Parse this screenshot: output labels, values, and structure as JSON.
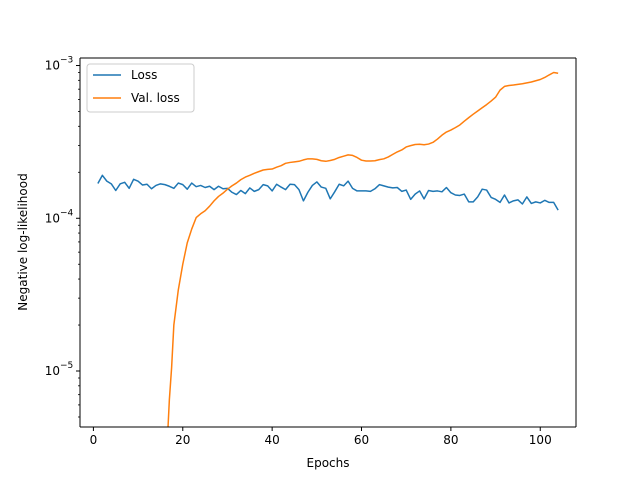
{
  "chart_data": {
    "type": "line",
    "title": "",
    "xlabel": "Epochs",
    "ylabel": "Negative log-likelihood",
    "xlim": [
      -3,
      108
    ],
    "ylim": [
      4.3e-06,
      0.00112
    ],
    "yscale": "log",
    "grid": false,
    "legend_position": "top-left",
    "xticks": [
      {
        "value": 0,
        "label": "0"
      },
      {
        "value": 20,
        "label": "20"
      },
      {
        "value": 40,
        "label": "40"
      },
      {
        "value": 60,
        "label": "60"
      },
      {
        "value": 80,
        "label": "80"
      },
      {
        "value": 100,
        "label": "100"
      }
    ],
    "yticks": [
      {
        "value": 1e-05,
        "base": "10",
        "exp": "−5"
      },
      {
        "value": 0.0001,
        "base": "10",
        "exp": "−4"
      },
      {
        "value": 0.001,
        "base": "10",
        "exp": "−3"
      }
    ],
    "series": [
      {
        "name": "Loss",
        "color": "#1f77b4",
        "x": [
          1,
          2,
          3,
          4,
          5,
          6,
          7,
          8,
          9,
          10,
          11,
          12,
          13,
          14,
          15,
          16,
          17,
          18,
          19,
          20,
          21,
          22,
          23,
          24,
          25,
          26,
          27,
          28,
          29,
          30,
          31,
          32,
          33,
          34,
          35,
          36,
          37,
          38,
          39,
          40,
          41,
          42,
          43,
          44,
          45,
          46,
          47,
          48,
          49,
          50,
          51,
          52,
          53,
          54,
          55,
          56,
          57,
          58,
          59,
          60,
          61,
          62,
          63,
          64,
          65,
          66,
          67,
          68,
          69,
          70,
          71,
          72,
          73,
          74,
          75,
          76,
          77,
          78,
          79,
          80,
          81,
          82,
          83,
          84,
          85,
          86,
          87,
          88,
          89,
          90,
          91,
          92,
          93,
          94,
          95,
          96,
          97,
          98,
          99,
          100,
          101,
          102,
          103,
          104
        ],
        "y": [
          0.000169,
          0.000191,
          0.000175,
          0.000168,
          0.000152,
          0.000168,
          0.000172,
          0.000157,
          0.00018,
          0.000175,
          0.000165,
          0.000167,
          0.000156,
          0.000164,
          0.000168,
          0.000166,
          0.000162,
          0.000157,
          0.00017,
          0.000166,
          0.000155,
          0.00017,
          0.000161,
          0.000164,
          0.000159,
          0.000162,
          0.000154,
          0.000162,
          0.000156,
          0.000157,
          0.000148,
          0.000143,
          0.000152,
          0.000145,
          0.000158,
          0.00015,
          0.000154,
          0.000166,
          0.000163,
          0.000151,
          0.000167,
          0.00016,
          0.000154,
          0.000167,
          0.000166,
          0.000154,
          0.00013,
          0.000148,
          0.000164,
          0.000173,
          0.00016,
          0.000157,
          0.000134,
          0.000149,
          0.000167,
          0.000163,
          0.000175,
          0.000157,
          0.000151,
          0.000151,
          0.000151,
          0.00015,
          0.000156,
          0.000166,
          0.000163,
          0.00016,
          0.000158,
          0.000159,
          0.00015,
          0.000153,
          0.000133,
          0.000144,
          0.000151,
          0.000134,
          0.000152,
          0.00015,
          0.000151,
          0.000149,
          0.000159,
          0.000147,
          0.000142,
          0.000141,
          0.000144,
          0.000128,
          0.000128,
          0.000138,
          0.000155,
          0.000153,
          0.000137,
          0.000133,
          0.000127,
          0.000142,
          0.000126,
          0.00013,
          0.000132,
          0.000124,
          0.000138,
          0.000125,
          0.000128,
          0.000126,
          0.000131,
          0.000127,
          0.000127,
          0.000113
        ]
      },
      {
        "name": "Val. loss",
        "color": "#ff7f0e",
        "x": [
          16.7,
          17,
          17.5,
          18,
          19,
          20,
          21,
          22,
          23,
          24,
          25,
          26,
          27,
          28,
          29,
          30,
          31,
          32,
          33,
          34,
          35,
          36,
          37,
          38,
          39,
          40,
          41,
          42,
          43,
          44,
          45,
          46,
          47,
          48,
          49,
          50,
          51,
          52,
          53,
          54,
          55,
          56,
          57,
          58,
          59,
          60,
          61,
          62,
          63,
          64,
          65,
          66,
          67,
          68,
          69,
          70,
          71,
          72,
          73,
          74,
          75,
          76,
          77,
          78,
          79,
          80,
          81,
          82,
          83,
          84,
          85,
          86,
          87,
          88,
          89,
          90,
          91,
          92,
          93,
          94,
          95,
          96,
          97,
          98,
          99,
          100,
          101,
          102,
          103,
          104
        ],
        "y": [
          4.3e-06,
          6.5e-06,
          1.05e-05,
          2e-05,
          3.4e-05,
          5e-05,
          6.9e-05,
          8.5e-05,
          0.000101,
          0.000107,
          0.000112,
          0.00012,
          0.00013,
          0.000139,
          0.000146,
          0.000155,
          0.000163,
          0.00017,
          0.000179,
          0.000186,
          0.000191,
          0.000197,
          0.000202,
          0.000207,
          0.000209,
          0.00021,
          0.000216,
          0.000221,
          0.000229,
          0.000232,
          0.000234,
          0.000236,
          0.000241,
          0.000245,
          0.000245,
          0.000243,
          0.000238,
          0.000236,
          0.000239,
          0.000243,
          0.00025,
          0.000255,
          0.00026,
          0.000258,
          0.00025,
          0.00024,
          0.000237,
          0.000237,
          0.000238,
          0.000242,
          0.000245,
          0.000252,
          0.000262,
          0.000272,
          0.00028,
          0.000293,
          0.000299,
          0.000304,
          0.000305,
          0.000303,
          0.000306,
          0.000314,
          0.00033,
          0.00035,
          0.000367,
          0.000378,
          0.000392,
          0.000408,
          0.000432,
          0.000456,
          0.00048,
          0.000504,
          0.000529,
          0.000555,
          0.000585,
          0.00062,
          0.00069,
          0.00073,
          0.00074,
          0.000745,
          0.000752,
          0.00076,
          0.00077,
          0.00078,
          0.000795,
          0.00081,
          0.000835,
          0.000868,
          0.0009,
          0.00089
        ]
      }
    ]
  }
}
